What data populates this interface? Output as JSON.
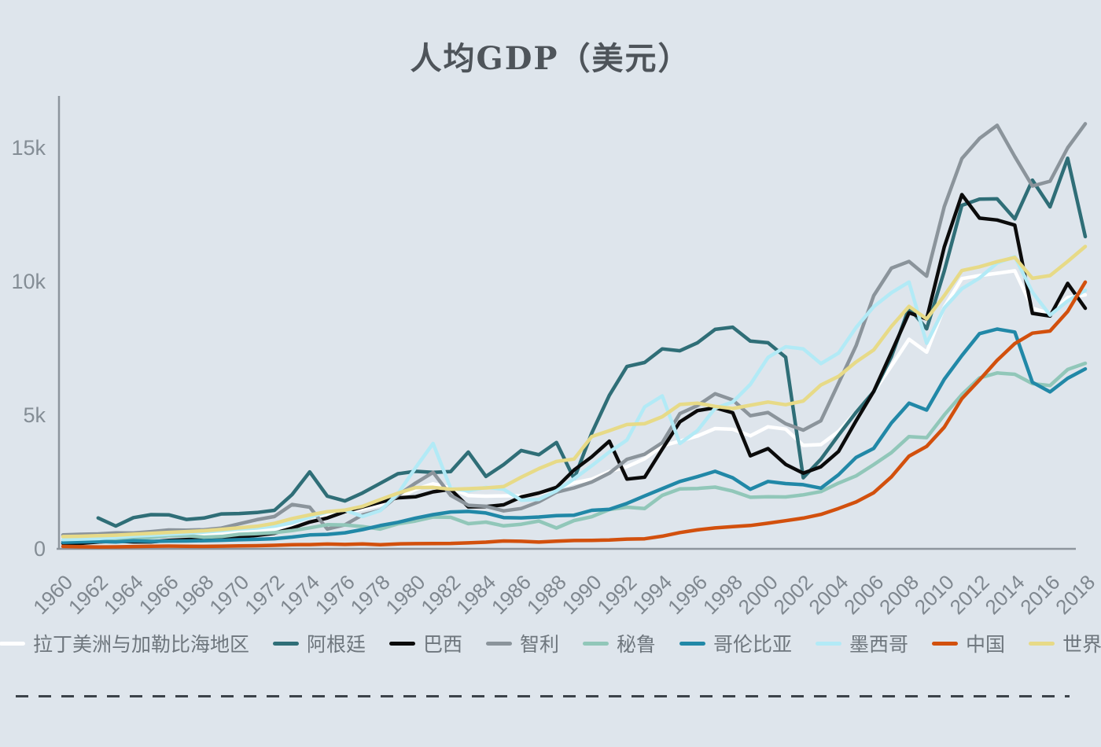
{
  "chart_data": {
    "type": "line",
    "title": "人均GDP（美元）",
    "background": "#dee5ec",
    "grid": false,
    "legend_position": "bottom",
    "x_axis": {
      "start": 1960,
      "end": 2018,
      "tick_step": 2
    },
    "y_axis": {
      "min": 0,
      "max": 16900,
      "unit": "USD",
      "ticks": [
        {
          "value": 0,
          "label": "0"
        },
        {
          "value": 5000,
          "label": "5k"
        },
        {
          "value": 10000,
          "label": "10k"
        },
        {
          "value": 15000,
          "label": "15k"
        }
      ]
    },
    "x_ticks": [
      "1960",
      "1962",
      "1964",
      "1966",
      "1968",
      "1970",
      "1972",
      "1974",
      "1976",
      "1978",
      "1980",
      "1982",
      "1984",
      "1986",
      "1988",
      "1990",
      "1992",
      "1994",
      "1996",
      "1998",
      "2000",
      "2002",
      "2004",
      "2006",
      "2008",
      "2010",
      "2012",
      "2014",
      "2016",
      "2018"
    ],
    "series": [
      {
        "id": "lac",
        "name": "拉丁美洲与加勒比海地区",
        "color": "#ffffff",
        "start_year": 1960,
        "values": [
          357,
          374,
          400,
          412,
          441,
          462,
          489,
          506,
          541,
          583,
          625,
          672,
          742,
          921,
          1183,
          1269,
          1369,
          1490,
          1642,
          1903,
          2227,
          2432,
          2281,
          1992,
          1971,
          1983,
          1989,
          2063,
          2257,
          2471,
          2606,
          2890,
          3075,
          3370,
          3850,
          4030,
          4220,
          4500,
          4475,
          4230,
          4565,
          4480,
          3870,
          3900,
          4390,
          5120,
          5870,
          6840,
          7840,
          7360,
          9040,
          10110,
          10220,
          10310,
          10400,
          9000,
          8800,
          9400,
          9500
        ]
      },
      {
        "id": "argentina",
        "name": "阿根廷",
        "color": "#2f6e77",
        "start_year": 1962,
        "values": [
          1155,
          854,
          1169,
          1279,
          1273,
          1100,
          1154,
          1306,
          1322,
          1360,
          1440,
          2030,
          2880,
          1970,
          1790,
          2090,
          2450,
          2810,
          2900,
          2860,
          2890,
          3620,
          2710,
          3150,
          3680,
          3520,
          3980,
          2620,
          4330,
          5740,
          6820,
          6970,
          7480,
          7410,
          7710,
          8210,
          8290,
          7770,
          7710,
          7170,
          2660,
          3350,
          4250,
          5110,
          5880,
          7190,
          9020,
          8230,
          10390,
          12850,
          13080,
          13090,
          12340,
          13790,
          12790,
          14610,
          11680
        ]
      },
      {
        "id": "brazil",
        "name": "巴西",
        "color": "#0b0b0b",
        "start_year": 1960,
        "values": [
          210,
          205,
          260,
          292,
          261,
          261,
          315,
          347,
          375,
          404,
          445,
          504,
          586,
          775,
          1004,
          1154,
          1391,
          1567,
          1745,
          1908,
          1947,
          2133,
          2227,
          1570,
          1578,
          1648,
          1941,
          2087,
          2300,
          2950,
          3440,
          4030,
          2610,
          2680,
          3730,
          4750,
          5170,
          5280,
          5090,
          3480,
          3750,
          3160,
          2830,
          3070,
          3640,
          4790,
          5890,
          7350,
          8830,
          8600,
          11290,
          13250,
          12370,
          12300,
          12110,
          8810,
          8710,
          9930,
          9000
        ]
      },
      {
        "id": "chile",
        "name": "智利",
        "color": "#8b949b",
        "start_year": 1960,
        "values": [
          520,
          545,
          560,
          595,
          590,
          645,
          705,
          700,
          715,
          775,
          935,
          1090,
          1210,
          1660,
          1560,
          740,
          900,
          1270,
          1440,
          2000,
          2460,
          2860,
          2000,
          1630,
          1590,
          1420,
          1510,
          1760,
          2120,
          2280,
          2500,
          2830,
          3350,
          3540,
          3970,
          5060,
          5360,
          5800,
          5570,
          4980,
          5100,
          4680,
          4440,
          4790,
          6190,
          7600,
          9470,
          10500,
          10750,
          10200,
          12800,
          14600,
          15350,
          15840,
          14670,
          13570,
          13750,
          15000,
          15900
        ]
      },
      {
        "id": "peru",
        "name": "秘鲁",
        "color": "#91c7b9",
        "start_year": 1960,
        "values": [
          254,
          280,
          306,
          327,
          377,
          427,
          487,
          497,
          437,
          462,
          543,
          572,
          605,
          683,
          784,
          903,
          893,
          836,
          737,
          934,
          1040,
          1190,
          1180,
          940,
          1000,
          860,
          920,
          1040,
          780,
          1060,
          1200,
          1470,
          1560,
          1510,
          2000,
          2240,
          2260,
          2310,
          2160,
          1930,
          1950,
          1940,
          2020,
          2140,
          2460,
          2730,
          3150,
          3600,
          4200,
          4160,
          5010,
          5770,
          6390,
          6580,
          6530,
          6180,
          6110,
          6710,
          6940
        ]
      },
      {
        "id": "colombia",
        "name": "哥伦比亚",
        "color": "#2188a7",
        "start_year": 1960,
        "values": [
          245,
          263,
          276,
          257,
          304,
          280,
          290,
          295,
          305,
          320,
          340,
          355,
          380,
          440,
          520,
          540,
          600,
          720,
          870,
          990,
          1150,
          1280,
          1380,
          1400,
          1340,
          1170,
          1160,
          1190,
          1240,
          1260,
          1440,
          1480,
          1700,
          1980,
          2250,
          2520,
          2700,
          2900,
          2660,
          2230,
          2520,
          2440,
          2400,
          2270,
          2770,
          3420,
          3760,
          4710,
          5450,
          5190,
          6340,
          7230,
          8050,
          8220,
          8110,
          6230,
          5870,
          6380,
          6730
        ]
      },
      {
        "id": "mexico",
        "name": "墨西哥",
        "color": "#b2eaf6",
        "start_year": 1960,
        "values": [
          345,
          365,
          385,
          425,
          480,
          510,
          545,
          580,
          630,
          680,
          740,
          780,
          850,
          970,
          1180,
          1380,
          1450,
          1210,
          1430,
          2060,
          3030,
          3940,
          2260,
          2170,
          2300,
          2230,
          1820,
          1850,
          2170,
          2620,
          3110,
          3620,
          4070,
          5310,
          5720,
          3940,
          4420,
          5260,
          5490,
          6150,
          7160,
          7560,
          7480,
          6930,
          7320,
          8280,
          9060,
          9580,
          9980,
          7690,
          9010,
          9730,
          10130,
          10690,
          10930,
          9600,
          8740,
          9270,
          9670
        ]
      },
      {
        "id": "china",
        "name": "中国",
        "color": "#d2500d",
        "start_year": 1960,
        "values": [
          90,
          76,
          71,
          74,
          85,
          98,
          104,
          97,
          91,
          100,
          113,
          119,
          132,
          157,
          160,
          178,
          165,
          185,
          156,
          184,
          195,
          197,
          203,
          225,
          251,
          294,
          282,
          252,
          284,
          311,
          318,
          333,
          366,
          377,
          473,
          610,
          709,
          782,
          829,
          873,
          959,
          1053,
          1149,
          1289,
          1509,
          1753,
          2099,
          2694,
          3468,
          3832,
          4550,
          5618,
          6317,
          7051,
          7679,
          8067,
          8148,
          8879,
          9977
        ]
      },
      {
        "id": "world",
        "name": "世界",
        "color": "#e7da87",
        "start_year": 1960,
        "values": [
          459,
          470,
          490,
          512,
          548,
          580,
          615,
          643,
          677,
          726,
          784,
          843,
          953,
          1130,
          1270,
          1390,
          1450,
          1590,
          1840,
          2080,
          2290,
          2300,
          2230,
          2250,
          2280,
          2330,
          2680,
          3000,
          3270,
          3360,
          4200,
          4420,
          4650,
          4680,
          4940,
          5400,
          5450,
          5330,
          5250,
          5370,
          5490,
          5390,
          5530,
          6130,
          6450,
          6990,
          7440,
          8320,
          9070,
          8600,
          9470,
          10410,
          10550,
          10740,
          10900,
          10120,
          10220,
          10750,
          11310
        ]
      }
    ]
  }
}
